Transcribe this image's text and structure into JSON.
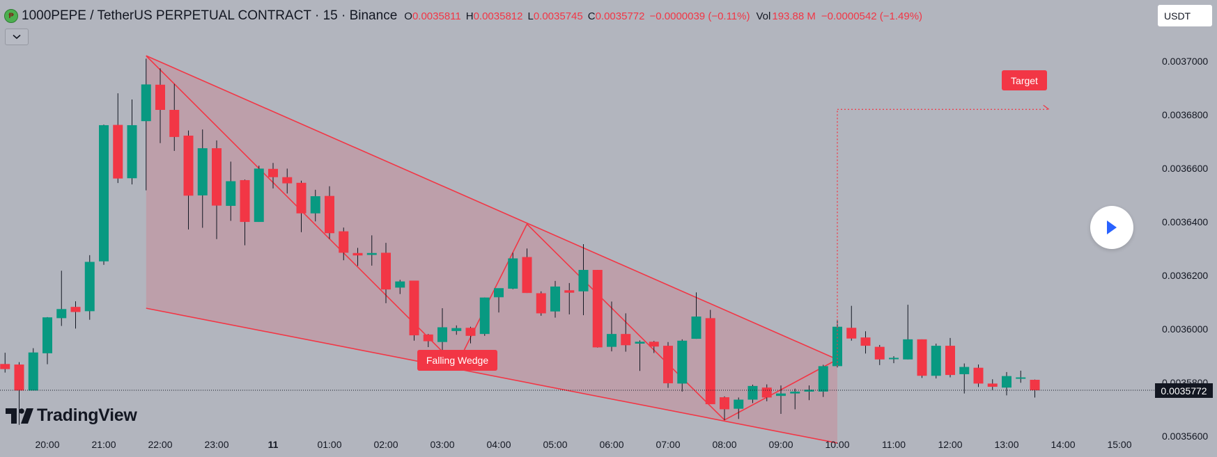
{
  "header": {
    "title": "1000PEPE / TetherUS PERPETUAL CONTRACT · 15 · Binance",
    "open_label": "O",
    "open": "0.0035811",
    "high_label": "H",
    "high": "0.0035812",
    "low_label": "L",
    "low": "0.0035745",
    "close_label": "C",
    "close": "0.0035772",
    "change": "−0.0000039 (−0.11%)",
    "volume_label": "Vol",
    "volume": "193.88 M",
    "volume_change": "−0.0000542 (−1.49%)"
  },
  "controls": {
    "collapse_icon": "chevron-down-icon",
    "currency": "USDT",
    "play_icon": "play-icon"
  },
  "logo": {
    "text": "TradingView"
  },
  "annotations": {
    "pattern_label": "Falling Wedge",
    "target_label": "Target",
    "last_price": "0.0035772"
  },
  "colors": {
    "background": "#b2b5be",
    "up": "#089981",
    "down": "#f23645",
    "wedge_fill": "#f23645",
    "axis_text": "#131722"
  },
  "chart_data": {
    "type": "candlestick",
    "interval": "15",
    "ylim": [
      0.0035523,
      0.0037228
    ],
    "y_ticks": [
      "0.0035600",
      "0.0035800",
      "0.0036000",
      "0.0036200",
      "0.0036400",
      "0.0036600",
      "0.0036800",
      "0.0037000"
    ],
    "x_ticks": [
      "20:00",
      "21:00",
      "22:00",
      "23:00",
      "11",
      "01:00",
      "02:00",
      "03:00",
      "04:00",
      "05:00",
      "06:00",
      "07:00",
      "08:00",
      "09:00",
      "10:00",
      "11:00",
      "12:00",
      "13:00",
      "14:00",
      "15:00"
    ],
    "candles": [
      {
        "time": "19:15",
        "o": 0.003587,
        "h": 0.0035912,
        "l": 0.0035838,
        "c": 0.0035851
      },
      {
        "time": "19:30",
        "o": 0.0035868,
        "h": 0.0035877,
        "l": 0.0035643,
        "c": 0.0035771
      },
      {
        "time": "19:45",
        "o": 0.0035771,
        "h": 0.0035929,
        "l": 0.0035771,
        "c": 0.0035913
      },
      {
        "time": "20:00",
        "o": 0.003591,
        "h": 0.0036045,
        "l": 0.0035869,
        "c": 0.0036044
      },
      {
        "time": "20:15",
        "o": 0.0036041,
        "h": 0.0036218,
        "l": 0.0036012,
        "c": 0.0036075
      },
      {
        "time": "20:30",
        "o": 0.0036083,
        "h": 0.0036104,
        "l": 0.0036002,
        "c": 0.0036064
      },
      {
        "time": "20:45",
        "o": 0.0036067,
        "h": 0.0036276,
        "l": 0.0036035,
        "c": 0.0036251
      },
      {
        "time": "21:00",
        "o": 0.0036253,
        "h": 0.0036763,
        "l": 0.003624,
        "c": 0.0036761
      },
      {
        "time": "21:15",
        "o": 0.0036762,
        "h": 0.003688,
        "l": 0.0036545,
        "c": 0.0036562
      },
      {
        "time": "21:30",
        "o": 0.0036563,
        "h": 0.0036857,
        "l": 0.003654,
        "c": 0.0036761
      },
      {
        "time": "21:45",
        "o": 0.0036776,
        "h": 0.0037009,
        "l": 0.0036518,
        "c": 0.0036913
      },
      {
        "time": "22:00",
        "o": 0.0036912,
        "h": 0.0036973,
        "l": 0.0036694,
        "c": 0.0036818
      },
      {
        "time": "22:15",
        "o": 0.0036818,
        "h": 0.0036915,
        "l": 0.0036665,
        "c": 0.0036717
      },
      {
        "time": "22:30",
        "o": 0.0036722,
        "h": 0.0036741,
        "l": 0.0036372,
        "c": 0.0036498
      },
      {
        "time": "22:45",
        "o": 0.0036499,
        "h": 0.0036745,
        "l": 0.0036378,
        "c": 0.0036675
      },
      {
        "time": "23:00",
        "o": 0.0036675,
        "h": 0.0036704,
        "l": 0.0036336,
        "c": 0.0036461
      },
      {
        "time": "23:15",
        "o": 0.003646,
        "h": 0.0036625,
        "l": 0.0036404,
        "c": 0.0036552
      },
      {
        "time": "23:30",
        "o": 0.0036556,
        "h": 0.0036558,
        "l": 0.0036313,
        "c": 0.00364
      },
      {
        "time": "23:45",
        "o": 0.00364,
        "h": 0.003661,
        "l": 0.00364,
        "c": 0.0036599
      },
      {
        "time": "00:00",
        "o": 0.0036598,
        "h": 0.003662,
        "l": 0.0036525,
        "c": 0.0036567
      },
      {
        "time": "00:15",
        "o": 0.0036567,
        "h": 0.0036599,
        "l": 0.0036506,
        "c": 0.0036544
      },
      {
        "time": "00:30",
        "o": 0.0036546,
        "h": 0.0036554,
        "l": 0.0036362,
        "c": 0.0036432
      },
      {
        "time": "00:45",
        "o": 0.0036432,
        "h": 0.003652,
        "l": 0.0036402,
        "c": 0.0036496
      },
      {
        "time": "01:00",
        "o": 0.0036497,
        "h": 0.0036533,
        "l": 0.0036337,
        "c": 0.0036358
      },
      {
        "time": "01:15",
        "o": 0.0036365,
        "h": 0.0036379,
        "l": 0.0036257,
        "c": 0.0036285
      },
      {
        "time": "01:30",
        "o": 0.0036284,
        "h": 0.0036303,
        "l": 0.0036236,
        "c": 0.0036275
      },
      {
        "time": "01:45",
        "o": 0.0036277,
        "h": 0.003635,
        "l": 0.0036237,
        "c": 0.0036284
      },
      {
        "time": "02:00",
        "o": 0.0036285,
        "h": 0.0036322,
        "l": 0.0036097,
        "c": 0.0036148
      },
      {
        "time": "02:15",
        "o": 0.0036155,
        "h": 0.0036184,
        "l": 0.0036131,
        "c": 0.0036178
      },
      {
        "time": "02:30",
        "o": 0.0036181,
        "h": 0.0036181,
        "l": 0.0035957,
        "c": 0.0035977
      },
      {
        "time": "02:45",
        "o": 0.003598,
        "h": 0.0035982,
        "l": 0.0035933,
        "c": 0.0035955
      },
      {
        "time": "03:00",
        "o": 0.0035952,
        "h": 0.0036078,
        "l": 0.0035905,
        "c": 0.0036007
      },
      {
        "time": "03:15",
        "o": 0.0035993,
        "h": 0.0036014,
        "l": 0.0035979,
        "c": 0.0036004
      },
      {
        "time": "03:30",
        "o": 0.0036005,
        "h": 0.0036009,
        "l": 0.0035947,
        "c": 0.0035975
      },
      {
        "time": "03:45",
        "o": 0.0035982,
        "h": 0.0036118,
        "l": 0.0035975,
        "c": 0.0036118
      },
      {
        "time": "04:00",
        "o": 0.0036119,
        "h": 0.0036148,
        "l": 0.0036062,
        "c": 0.0036153
      },
      {
        "time": "04:15",
        "o": 0.0036151,
        "h": 0.0036285,
        "l": 0.0036149,
        "c": 0.0036264
      },
      {
        "time": "04:30",
        "o": 0.0036269,
        "h": 0.0036301,
        "l": 0.0036135,
        "c": 0.0036135
      },
      {
        "time": "04:45",
        "o": 0.0036134,
        "h": 0.0036141,
        "l": 0.003605,
        "c": 0.0036059
      },
      {
        "time": "05:00",
        "o": 0.0036066,
        "h": 0.003618,
        "l": 0.0036043,
        "c": 0.0036159
      },
      {
        "time": "05:15",
        "o": 0.0036145,
        "h": 0.0036172,
        "l": 0.0036055,
        "c": 0.0036136
      },
      {
        "time": "05:30",
        "o": 0.0036141,
        "h": 0.0036317,
        "l": 0.0036052,
        "c": 0.0036221
      },
      {
        "time": "05:45",
        "o": 0.0036221,
        "h": 0.0036221,
        "l": 0.0035931,
        "c": 0.0035932
      },
      {
        "time": "06:00",
        "o": 0.0035934,
        "h": 0.0036103,
        "l": 0.0035917,
        "c": 0.0035982
      },
      {
        "time": "06:15",
        "o": 0.0035982,
        "h": 0.0036059,
        "l": 0.0035916,
        "c": 0.003594
      },
      {
        "time": "06:30",
        "o": 0.0035946,
        "h": 0.0035958,
        "l": 0.0035844,
        "c": 0.0035953
      },
      {
        "time": "06:45",
        "o": 0.0035953,
        "h": 0.0035956,
        "l": 0.0035911,
        "c": 0.0035935
      },
      {
        "time": "07:00",
        "o": 0.0035938,
        "h": 0.0035952,
        "l": 0.0035781,
        "c": 0.0035798
      },
      {
        "time": "07:15",
        "o": 0.0035797,
        "h": 0.0035962,
        "l": 0.0035767,
        "c": 0.0035957
      },
      {
        "time": "07:30",
        "o": 0.0035964,
        "h": 0.0036137,
        "l": 0.0035964,
        "c": 0.0036047
      },
      {
        "time": "07:45",
        "o": 0.0036041,
        "h": 0.0036072,
        "l": 0.0035723,
        "c": 0.003572
      },
      {
        "time": "08:00",
        "o": 0.0035746,
        "h": 0.0035749,
        "l": 0.0035661,
        "c": 0.0035701
      },
      {
        "time": "08:15",
        "o": 0.0035703,
        "h": 0.0035745,
        "l": 0.0035665,
        "c": 0.0035737
      },
      {
        "time": "08:30",
        "o": 0.0035737,
        "h": 0.0035793,
        "l": 0.0035724,
        "c": 0.0035788
      },
      {
        "time": "08:45",
        "o": 0.0035782,
        "h": 0.0035794,
        "l": 0.0035731,
        "c": 0.0035745
      },
      {
        "time": "09:00",
        "o": 0.0035751,
        "h": 0.003579,
        "l": 0.0035684,
        "c": 0.003576
      },
      {
        "time": "09:15",
        "o": 0.003576,
        "h": 0.0035778,
        "l": 0.0035701,
        "c": 0.0035767
      },
      {
        "time": "09:30",
        "o": 0.0035767,
        "h": 0.003579,
        "l": 0.0035735,
        "c": 0.0035774
      },
      {
        "time": "09:45",
        "o": 0.0035767,
        "h": 0.0035867,
        "l": 0.0035747,
        "c": 0.0035862
      },
      {
        "time": "10:00",
        "o": 0.0035862,
        "h": 0.0036035,
        "l": 0.0035857,
        "c": 0.0036009
      },
      {
        "time": "10:15",
        "o": 0.0036005,
        "h": 0.0036087,
        "l": 0.0035957,
        "c": 0.0035965
      },
      {
        "time": "10:30",
        "o": 0.0035969,
        "h": 0.0035992,
        "l": 0.0035909,
        "c": 0.0035938
      },
      {
        "time": "10:45",
        "o": 0.0035934,
        "h": 0.0035941,
        "l": 0.0035866,
        "c": 0.0035887
      },
      {
        "time": "11:00",
        "o": 0.0035891,
        "h": 0.0035899,
        "l": 0.0035873,
        "c": 0.0035893
      },
      {
        "time": "11:15",
        "o": 0.0035887,
        "h": 0.0036091,
        "l": 0.0035887,
        "c": 0.0035962
      },
      {
        "time": "11:30",
        "o": 0.0035962,
        "h": 0.0035962,
        "l": 0.0035818,
        "c": 0.0035826
      },
      {
        "time": "11:45",
        "o": 0.0035826,
        "h": 0.0035946,
        "l": 0.0035816,
        "c": 0.0035938
      },
      {
        "time": "12:00",
        "o": 0.0035938,
        "h": 0.0035967,
        "l": 0.003582,
        "c": 0.0035829
      },
      {
        "time": "12:15",
        "o": 0.0035832,
        "h": 0.0035872,
        "l": 0.003576,
        "c": 0.0035859
      },
      {
        "time": "12:30",
        "o": 0.0035856,
        "h": 0.0035868,
        "l": 0.0035784,
        "c": 0.0035797
      },
      {
        "time": "12:45",
        "o": 0.0035797,
        "h": 0.0035813,
        "l": 0.0035773,
        "c": 0.0035785
      },
      {
        "time": "13:00",
        "o": 0.0035782,
        "h": 0.003584,
        "l": 0.0035753,
        "c": 0.0035825
      },
      {
        "time": "13:15",
        "o": 0.0035817,
        "h": 0.0035845,
        "l": 0.00358,
        "c": 0.003582
      },
      {
        "time": "13:30",
        "o": 0.0035811,
        "h": 0.0035812,
        "l": 0.0035745,
        "c": 0.0035772
      }
    ],
    "wedge": {
      "upper": [
        {
          "time": "21:45",
          "price": 0.003702
        },
        {
          "time": "10:00",
          "price": 0.0035887
        }
      ],
      "lower": [
        {
          "time": "21:45",
          "price": 0.0036078
        },
        {
          "time": "10:00",
          "price": 0.0035575
        }
      ],
      "zigzag": [
        {
          "time": "21:45",
          "price": 0.003702
        },
        {
          "time": "03:15",
          "price": 0.0035864
        },
        {
          "time": "04:30",
          "price": 0.0036392
        },
        {
          "time": "08:00",
          "price": 0.0035661
        },
        {
          "time": "10:00",
          "price": 0.0035887
        }
      ]
    },
    "target": {
      "start_time": "10:00",
      "end_time": "13:45",
      "price": 0.003682
    },
    "last_price": 0.0035772
  }
}
